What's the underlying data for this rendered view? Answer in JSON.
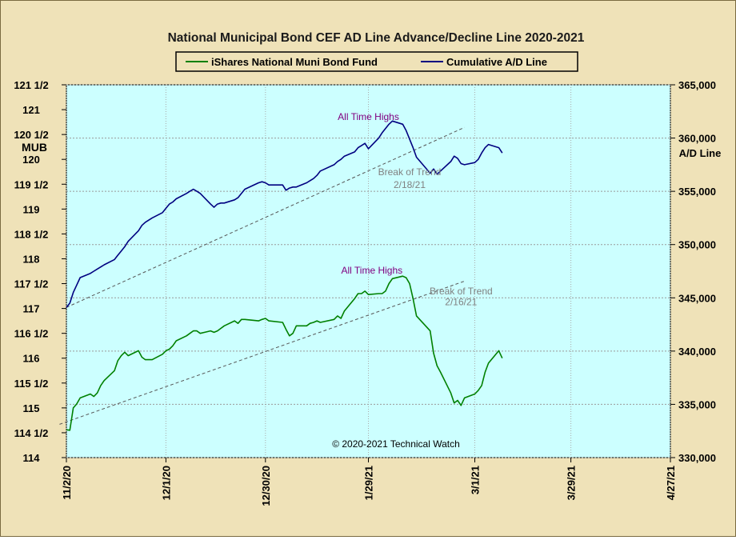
{
  "chart_data": {
    "type": "line",
    "title": "National Municipal Bond CEF AD Line Advance/Decline Line 2020-2021",
    "legend": {
      "placement": "top-center"
    },
    "left_axis": {
      "label": "MUB",
      "range": [
        114,
        121.5
      ],
      "ticks": [
        "114",
        "114 1/2",
        "115",
        "115 1/2",
        "116",
        "116 1/2",
        "117",
        "117 1/2",
        "118",
        "118 1/2",
        "119",
        "119 1/2",
        "120",
        "120 1/2",
        "121",
        "121 1/2"
      ]
    },
    "right_axis": {
      "label": "A/D Line",
      "range": [
        330000,
        365000
      ],
      "ticks": [
        "330,000",
        "335,000",
        "340,000",
        "345,000",
        "350,000",
        "355,000",
        "360,000",
        "365,000"
      ]
    },
    "x_axis": {
      "start": "2020-11-02",
      "end": "2021-04-27",
      "tick_labels": [
        "11/2/20",
        "12/1/20",
        "12/30/20",
        "1/29/21",
        "3/1/21",
        "3/29/21",
        "4/27/21"
      ],
      "tick_dates": [
        "2020-11-02",
        "2020-12-01",
        "2020-12-30",
        "2021-01-29",
        "2021-03-01",
        "2021-03-29",
        "2021-04-27"
      ]
    },
    "grid": true,
    "series": [
      {
        "name": "iShares National Muni Bond Fund",
        "color": "#008000",
        "axis": "left",
        "points": [
          [
            "2020-11-02",
            114.56
          ],
          [
            "2020-11-03",
            114.55
          ],
          [
            "2020-11-04",
            115.0
          ],
          [
            "2020-11-05",
            115.08
          ],
          [
            "2020-11-06",
            115.2
          ],
          [
            "2020-11-09",
            115.28
          ],
          [
            "2020-11-10",
            115.23
          ],
          [
            "2020-11-11",
            115.3
          ],
          [
            "2020-11-12",
            115.45
          ],
          [
            "2020-11-13",
            115.55
          ],
          [
            "2020-11-16",
            115.75
          ],
          [
            "2020-11-17",
            115.95
          ],
          [
            "2020-11-18",
            116.05
          ],
          [
            "2020-11-19",
            116.12
          ],
          [
            "2020-11-20",
            116.05
          ],
          [
            "2020-11-23",
            116.15
          ],
          [
            "2020-11-24",
            116.02
          ],
          [
            "2020-11-25",
            115.97
          ],
          [
            "2020-11-27",
            115.97
          ],
          [
            "2020-11-30",
            116.08
          ],
          [
            "2020-12-01",
            116.15
          ],
          [
            "2020-12-02",
            116.18
          ],
          [
            "2020-12-03",
            116.25
          ],
          [
            "2020-12-04",
            116.35
          ],
          [
            "2020-12-07",
            116.45
          ],
          [
            "2020-12-08",
            116.5
          ],
          [
            "2020-12-09",
            116.55
          ],
          [
            "2020-12-10",
            116.55
          ],
          [
            "2020-12-11",
            116.5
          ],
          [
            "2020-12-14",
            116.55
          ],
          [
            "2020-12-15",
            116.52
          ],
          [
            "2020-12-16",
            116.55
          ],
          [
            "2020-12-17",
            116.6
          ],
          [
            "2020-12-18",
            116.65
          ],
          [
            "2020-12-21",
            116.75
          ],
          [
            "2020-12-22",
            116.7
          ],
          [
            "2020-12-23",
            116.78
          ],
          [
            "2020-12-24",
            116.78
          ],
          [
            "2020-12-28",
            116.75
          ],
          [
            "2020-12-29",
            116.78
          ],
          [
            "2020-12-30",
            116.8
          ],
          [
            "2020-12-31",
            116.75
          ],
          [
            "2021-01-04",
            116.72
          ],
          [
            "2021-01-05",
            116.58
          ],
          [
            "2021-01-06",
            116.45
          ],
          [
            "2021-01-07",
            116.5
          ],
          [
            "2021-01-08",
            116.65
          ],
          [
            "2021-01-11",
            116.65
          ],
          [
            "2021-01-12",
            116.7
          ],
          [
            "2021-01-13",
            116.72
          ],
          [
            "2021-01-14",
            116.75
          ],
          [
            "2021-01-15",
            116.72
          ],
          [
            "2021-01-19",
            116.78
          ],
          [
            "2021-01-20",
            116.85
          ],
          [
            "2021-01-21",
            116.8
          ],
          [
            "2021-01-22",
            116.95
          ],
          [
            "2021-01-25",
            117.2
          ],
          [
            "2021-01-26",
            117.3
          ],
          [
            "2021-01-27",
            117.3
          ],
          [
            "2021-01-28",
            117.35
          ],
          [
            "2021-01-29",
            117.28
          ],
          [
            "2021-02-01",
            117.3
          ],
          [
            "2021-02-02",
            117.3
          ],
          [
            "2021-02-03",
            117.35
          ],
          [
            "2021-02-04",
            117.5
          ],
          [
            "2021-02-05",
            117.6
          ],
          [
            "2021-02-08",
            117.65
          ],
          [
            "2021-02-09",
            117.62
          ],
          [
            "2021-02-10",
            117.5
          ],
          [
            "2021-02-11",
            117.2
          ],
          [
            "2021-02-12",
            116.85
          ],
          [
            "2021-02-16",
            116.55
          ],
          [
            "2021-02-17",
            116.1
          ],
          [
            "2021-02-18",
            115.85
          ],
          [
            "2021-02-19",
            115.72
          ],
          [
            "2021-02-22",
            115.3
          ],
          [
            "2021-02-23",
            115.1
          ],
          [
            "2021-02-24",
            115.15
          ],
          [
            "2021-02-25",
            115.05
          ],
          [
            "2021-02-26",
            115.2
          ],
          [
            "2021-03-01",
            115.28
          ],
          [
            "2021-03-02",
            115.35
          ],
          [
            "2021-03-03",
            115.45
          ],
          [
            "2021-03-04",
            115.72
          ],
          [
            "2021-03-05",
            115.9
          ],
          [
            "2021-03-08",
            116.15
          ],
          [
            "2021-03-09",
            116.0
          ]
        ]
      },
      {
        "name": "Cumulative A/D Line",
        "color": "#000080",
        "axis": "right",
        "points": [
          [
            "2020-11-02",
            344.1
          ],
          [
            "2020-11-03",
            344.5
          ],
          [
            "2020-11-04",
            345.5
          ],
          [
            "2020-11-05",
            346.2
          ],
          [
            "2020-11-06",
            346.9
          ],
          [
            "2020-11-09",
            347.3
          ],
          [
            "2020-11-10",
            347.5
          ],
          [
            "2020-11-11",
            347.7
          ],
          [
            "2020-11-12",
            347.9
          ],
          [
            "2020-11-13",
            348.1
          ],
          [
            "2020-11-16",
            348.6
          ],
          [
            "2020-11-17",
            349.0
          ],
          [
            "2020-11-18",
            349.4
          ],
          [
            "2020-11-19",
            349.8
          ],
          [
            "2020-11-20",
            350.3
          ],
          [
            "2020-11-23",
            351.3
          ],
          [
            "2020-11-24",
            351.8
          ],
          [
            "2020-11-25",
            352.1
          ],
          [
            "2020-11-27",
            352.5
          ],
          [
            "2020-11-30",
            353.0
          ],
          [
            "2020-12-01",
            353.4
          ],
          [
            "2020-12-02",
            353.8
          ],
          [
            "2020-12-03",
            354.0
          ],
          [
            "2020-12-04",
            354.3
          ],
          [
            "2020-12-07",
            354.8
          ],
          [
            "2020-12-08",
            355.0
          ],
          [
            "2020-12-09",
            355.2
          ],
          [
            "2020-12-10",
            355.0
          ],
          [
            "2020-12-11",
            354.8
          ],
          [
            "2020-12-14",
            353.8
          ],
          [
            "2020-12-15",
            353.5
          ],
          [
            "2020-12-16",
            353.8
          ],
          [
            "2020-12-17",
            353.9
          ],
          [
            "2020-12-18",
            353.9
          ],
          [
            "2020-12-21",
            354.2
          ],
          [
            "2020-12-22",
            354.4
          ],
          [
            "2020-12-23",
            354.8
          ],
          [
            "2020-12-24",
            355.2
          ],
          [
            "2020-12-28",
            355.8
          ],
          [
            "2020-12-29",
            355.9
          ],
          [
            "2020-12-30",
            355.8
          ],
          [
            "2020-12-31",
            355.6
          ],
          [
            "2021-01-04",
            355.6
          ],
          [
            "2021-01-05",
            355.1
          ],
          [
            "2021-01-06",
            355.3
          ],
          [
            "2021-01-07",
            355.4
          ],
          [
            "2021-01-08",
            355.4
          ],
          [
            "2021-01-11",
            355.8
          ],
          [
            "2021-01-12",
            356.0
          ],
          [
            "2021-01-13",
            356.2
          ],
          [
            "2021-01-14",
            356.5
          ],
          [
            "2021-01-15",
            356.9
          ],
          [
            "2021-01-19",
            357.5
          ],
          [
            "2021-01-20",
            357.8
          ],
          [
            "2021-01-21",
            358.0
          ],
          [
            "2021-01-22",
            358.3
          ],
          [
            "2021-01-25",
            358.7
          ],
          [
            "2021-01-26",
            359.1
          ],
          [
            "2021-01-27",
            359.3
          ],
          [
            "2021-01-28",
            359.5
          ],
          [
            "2021-01-29",
            359.0
          ],
          [
            "2021-02-01",
            360.0
          ],
          [
            "2021-02-02",
            360.5
          ],
          [
            "2021-02-03",
            360.9
          ],
          [
            "2021-02-04",
            361.3
          ],
          [
            "2021-02-05",
            361.6
          ],
          [
            "2021-02-08",
            361.3
          ],
          [
            "2021-02-09",
            360.7
          ],
          [
            "2021-02-10",
            359.9
          ],
          [
            "2021-02-11",
            359.1
          ],
          [
            "2021-02-12",
            358.2
          ],
          [
            "2021-02-16",
            356.7
          ],
          [
            "2021-02-17",
            357.1
          ],
          [
            "2021-02-18",
            356.6
          ],
          [
            "2021-02-19",
            356.9
          ],
          [
            "2021-02-22",
            357.8
          ],
          [
            "2021-02-23",
            358.3
          ],
          [
            "2021-02-24",
            358.1
          ],
          [
            "2021-02-25",
            357.6
          ],
          [
            "2021-02-26",
            357.5
          ],
          [
            "2021-03-01",
            357.7
          ],
          [
            "2021-03-02",
            358.0
          ],
          [
            "2021-03-03",
            358.6
          ],
          [
            "2021-03-04",
            359.1
          ],
          [
            "2021-03-05",
            359.4
          ],
          [
            "2021-03-08",
            359.1
          ],
          [
            "2021-03-09",
            358.6
          ]
        ]
      }
    ],
    "trend_lines": [
      {
        "axis": "right",
        "from": [
          "2020-11-02",
          344.1
        ],
        "to": [
          "2021-02-26",
          361.0
        ]
      },
      {
        "axis": "left",
        "from": [
          "2020-10-31",
          114.67
        ],
        "to": [
          "2021-02-26",
          117.55
        ]
      }
    ],
    "annotations": [
      {
        "text": "All Time Highs",
        "axis": "right",
        "at": [
          "2021-01-29",
          361.7
        ]
      },
      {
        "text": "Break of Trend",
        "axis": "right",
        "at": [
          "2021-02-10",
          356.5
        ]
      },
      {
        "text": "2/18/21",
        "axis": "right",
        "at": [
          "2021-02-10",
          355.3
        ]
      },
      {
        "text": "All Time Highs",
        "axis": "left",
        "at": [
          "2021-01-30",
          117.7
        ]
      },
      {
        "text": "Break of Trend",
        "axis": "left",
        "at": [
          "2021-02-25",
          117.28
        ]
      },
      {
        "text": "2/16/21",
        "axis": "left",
        "at": [
          "2021-02-25",
          117.07
        ]
      }
    ],
    "copyright": "© 2020-2021  Technical Watch"
  }
}
